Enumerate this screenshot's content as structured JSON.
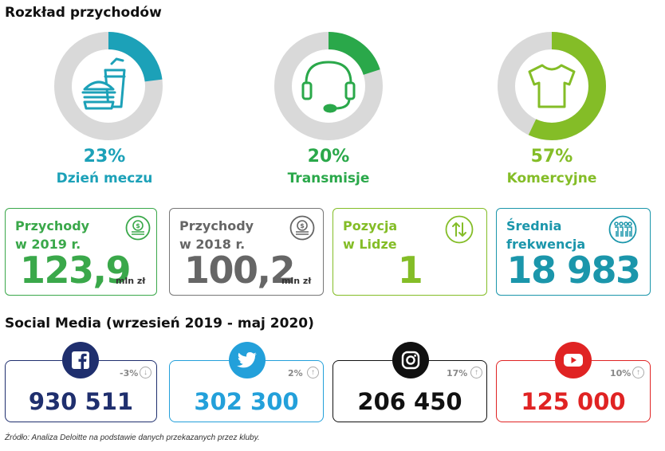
{
  "header": {
    "title": "Rozkład przychodów"
  },
  "revenue_split": [
    {
      "pct": "23%",
      "label": "Dzień meczu",
      "value": 23,
      "color": "#1ca1b8",
      "icon": "food-drink-icon"
    },
    {
      "pct": "20%",
      "label": "Transmisje",
      "value": 20,
      "color": "#2aa84a",
      "icon": "headset-icon"
    },
    {
      "pct": "57%",
      "label": "Komercyjne",
      "value": 57,
      "color": "#84bd27",
      "icon": "tshirt-icon"
    }
  ],
  "stats": {
    "rev2019": {
      "line1": "Przychody",
      "line2": "w 2019 r.",
      "value": "123,9",
      "unit": "mln zł",
      "color": "#3aa84a",
      "icon": "coins-icon"
    },
    "rev2018": {
      "line1": "Przychody",
      "line2": "w 2018 r.",
      "value": "100,2",
      "unit": "mln zł",
      "color": "#666666",
      "icon": "coins-icon"
    },
    "position": {
      "line1": "Pozycja",
      "line2": "w Lidze",
      "value": "1",
      "color": "#84bd27",
      "icon": "up-down-arrows-icon"
    },
    "attendance": {
      "line1": "Średnia",
      "line2": "frekwencja",
      "value": "18 983",
      "color": "#1b96ab",
      "icon": "people-icon"
    }
  },
  "social": {
    "title": "Social Media (wrzesień 2019 - maj 2020)",
    "items": [
      {
        "network": "Facebook",
        "value": "930 511",
        "change": "-3%",
        "direction": "down",
        "color": "#1f2f6e",
        "icon": "facebook-icon"
      },
      {
        "network": "Twitter",
        "value": "302 300",
        "change": "2%",
        "direction": "up",
        "color": "#23a0da",
        "icon": "twitter-icon"
      },
      {
        "network": "Instagram",
        "value": "206 450",
        "change": "17%",
        "direction": "up",
        "color": "#111111",
        "icon": "instagram-icon"
      },
      {
        "network": "YouTube",
        "value": "125 000",
        "change": "10%",
        "direction": "up",
        "color": "#e02323",
        "icon": "youtube-icon"
      }
    ]
  },
  "footer": {
    "source": "Źródło: Analiza Deloitte na podstawie danych przekazanych przez kluby."
  }
}
